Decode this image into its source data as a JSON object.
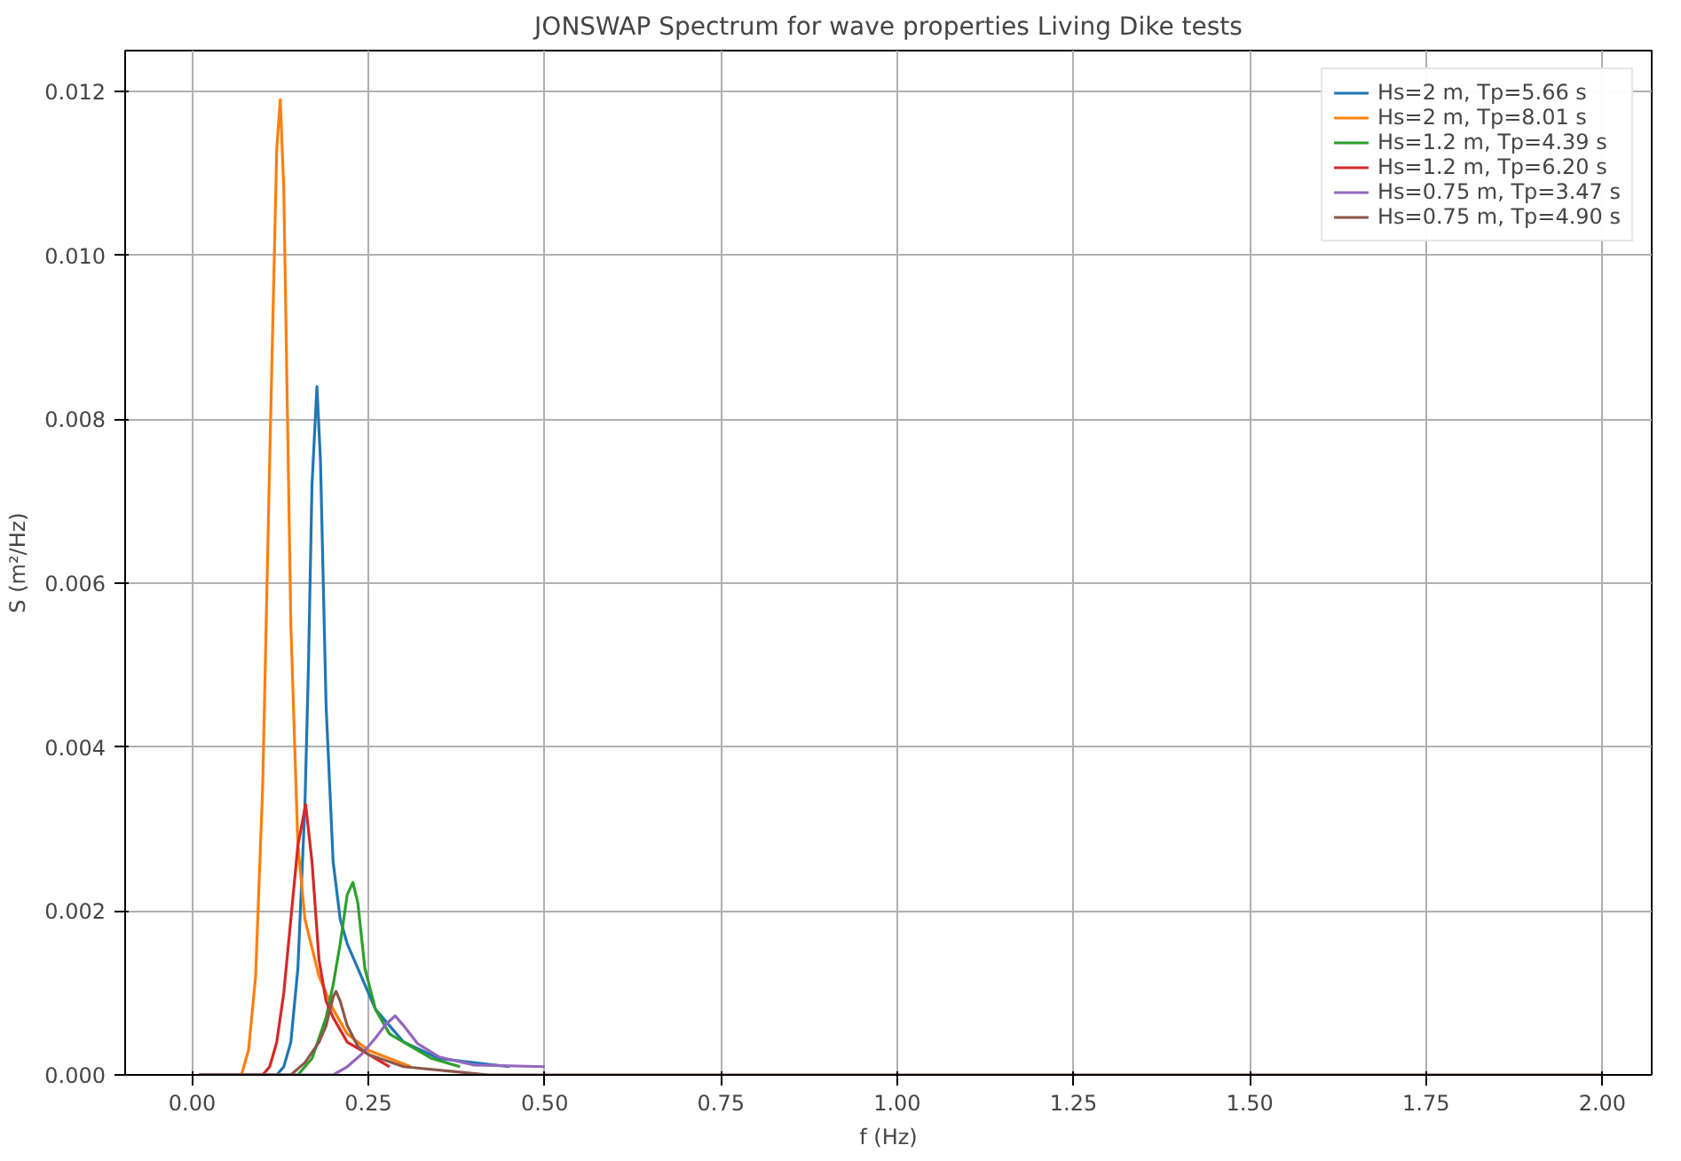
{
  "chart_data": {
    "type": "line",
    "title": "JONSWAP Spectrum for wave properties Living Dike tests",
    "xlabel": "f (Hz)",
    "ylabel": "S (m²/Hz)",
    "xlim": [
      -0.095,
      2.07
    ],
    "ylim": [
      0,
      0.0125
    ],
    "xticks": [
      {
        "value": 0,
        "label": "0.00"
      },
      0.25,
      {
        "value": 0.5,
        "label": "0.50"
      },
      0.75,
      {
        "value": 1,
        "label": "1.00"
      },
      1.25,
      {
        "value": 1.5,
        "label": "1.50"
      },
      1.75,
      {
        "value": 2,
        "label": "2.00"
      }
    ],
    "yticks": [
      {
        "value": 0,
        "label": "0.000"
      },
      {
        "value": 0.002,
        "label": "0.002"
      },
      {
        "value": 0.004,
        "label": "0.004"
      },
      {
        "value": 0.006,
        "label": "0.006"
      },
      {
        "value": 0.008,
        "label": "0.008"
      },
      {
        "value": 0.01,
        "label": "0.010"
      },
      {
        "value": 0.012,
        "label": "0.012"
      }
    ],
    "grid": true,
    "legend": "top right",
    "line_style": "solid",
    "series": [
      {
        "name": "Hs=2 m, Tp=5.66 s",
        "color": "#1f77b4",
        "x": [
          0.01,
          0.12,
          0.13,
          0.14,
          0.15,
          0.16,
          0.165,
          0.17,
          0.177,
          0.182,
          0.19,
          0.2,
          0.21,
          0.22,
          0.24,
          0.26,
          0.28,
          0.3,
          0.35,
          0.45
        ],
        "values": [
          0,
          0,
          0.0001,
          0.0004,
          0.0013,
          0.0033,
          0.005,
          0.0072,
          0.0084,
          0.0075,
          0.0045,
          0.0026,
          0.0019,
          0.0016,
          0.0012,
          0.0008,
          0.0006,
          0.0004,
          0.0002,
          0.0001
        ]
      },
      {
        "name": "Hs=2 m, Tp=8.01 s",
        "color": "#ff7f0e",
        "x": [
          0.01,
          0.07,
          0.08,
          0.09,
          0.1,
          0.11,
          0.12,
          0.125,
          0.13,
          0.14,
          0.15,
          0.16,
          0.18,
          0.2,
          0.22,
          0.25,
          0.31
        ],
        "values": [
          0,
          0,
          0.0003,
          0.0012,
          0.0035,
          0.0075,
          0.0113,
          0.0119,
          0.0108,
          0.0055,
          0.0028,
          0.0019,
          0.0012,
          0.0008,
          0.0005,
          0.0003,
          0.0001
        ]
      },
      {
        "name": "Hs=1.2 m, Tp=4.39 s",
        "color": "#2ca02c",
        "x": [
          0.01,
          0.15,
          0.17,
          0.19,
          0.2,
          0.21,
          0.22,
          0.228,
          0.235,
          0.245,
          0.26,
          0.28,
          0.3,
          0.34,
          0.38
        ],
        "values": [
          0,
          0,
          0.0002,
          0.0007,
          0.0011,
          0.0016,
          0.0022,
          0.00235,
          0.0021,
          0.0013,
          0.0008,
          0.0005,
          0.0004,
          0.0002,
          0.0001
        ]
      },
      {
        "name": "Hs=1.2 m, Tp=6.20 s",
        "color": "#d62728",
        "x": [
          0.01,
          0.1,
          0.11,
          0.12,
          0.13,
          0.14,
          0.15,
          0.161,
          0.17,
          0.18,
          0.19,
          0.2,
          0.22,
          0.25,
          0.28
        ],
        "values": [
          0,
          0,
          0.0001,
          0.0004,
          0.001,
          0.0019,
          0.0028,
          0.0033,
          0.0026,
          0.0014,
          0.0009,
          0.0007,
          0.0004,
          0.00025,
          0.0001
        ]
      },
      {
        "name": "Hs=0.75 m, Tp=3.47 s",
        "color": "#9467bd",
        "x": [
          0.01,
          0.2,
          0.22,
          0.24,
          0.26,
          0.275,
          0.288,
          0.3,
          0.32,
          0.35,
          0.4,
          0.5
        ],
        "values": [
          0,
          0,
          0.0001,
          0.00025,
          0.00045,
          0.00062,
          0.00072,
          0.0006,
          0.00038,
          0.00022,
          0.00012,
          0.0001
        ]
      },
      {
        "name": "Hs=0.75 m, Tp=4.90 s",
        "color": "#8c564b",
        "x": [
          0.01,
          0.14,
          0.16,
          0.18,
          0.19,
          0.2,
          0.204,
          0.21,
          0.22,
          0.235,
          0.25,
          0.3,
          0.42,
          2.0
        ],
        "values": [
          0,
          0,
          0.00015,
          0.0004,
          0.0006,
          0.00095,
          0.00102,
          0.0009,
          0.0006,
          0.00035,
          0.00025,
          0.0001,
          0,
          0
        ]
      }
    ]
  }
}
